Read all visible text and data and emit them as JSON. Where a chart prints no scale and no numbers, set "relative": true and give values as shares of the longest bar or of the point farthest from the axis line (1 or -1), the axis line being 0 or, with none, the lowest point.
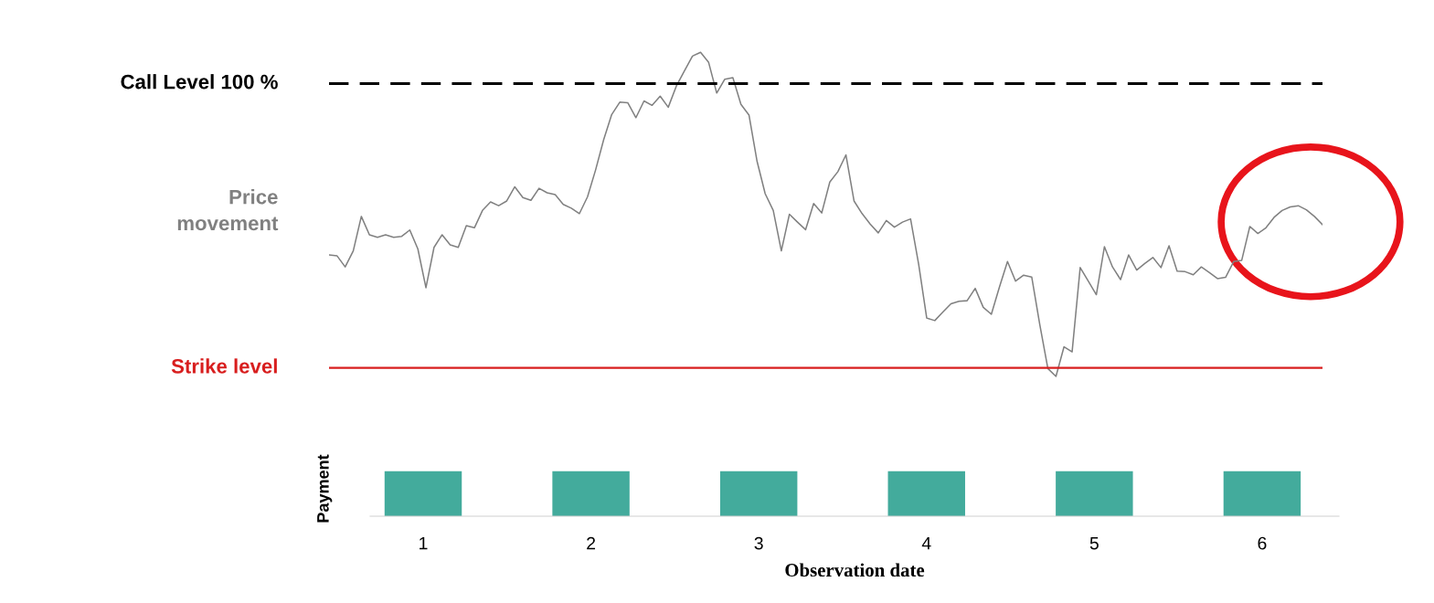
{
  "chart_data": [
    {
      "type": "line",
      "relative": true,
      "grid": false,
      "legend": false,
      "categories": [
        null,
        null,
        null,
        null,
        null,
        null,
        null,
        null,
        null,
        null,
        null,
        null,
        null,
        null,
        null,
        null,
        null,
        null,
        null,
        null,
        null,
        null,
        null,
        null,
        null,
        null,
        null,
        null,
        null,
        null,
        null,
        null,
        null,
        null,
        null,
        null,
        null,
        null,
        null,
        null,
        null,
        null,
        null,
        null,
        null,
        null,
        null,
        null,
        null,
        null,
        null,
        null,
        null,
        null,
        null,
        null,
        null,
        null,
        null,
        null,
        null,
        null,
        null,
        null,
        null,
        null,
        null,
        null,
        null,
        null,
        null,
        null,
        null,
        null,
        null,
        null,
        null,
        null,
        null,
        null,
        null,
        null,
        null,
        null,
        null,
        null,
        null,
        null,
        null,
        null,
        null,
        null,
        null,
        null,
        null,
        null,
        null,
        null,
        null,
        null,
        null,
        null,
        null,
        null,
        null,
        null,
        null,
        null,
        null,
        null,
        null,
        null,
        null,
        null,
        null,
        null,
        null,
        null,
        null,
        null,
        null,
        null,
        null,
        null
      ],
      "series": [
        {
          "name": "Price movement",
          "color": "#808080",
          "values": [
            0.358,
            0.355,
            0.32,
            0.371,
            0.48,
            0.422,
            0.414,
            0.422,
            0.414,
            0.417,
            0.437,
            0.377,
            0.254,
            0.382,
            0.422,
            0.39,
            0.382,
            0.451,
            0.444,
            0.499,
            0.526,
            0.514,
            0.529,
            0.574,
            0.54,
            0.531,
            0.569,
            0.555,
            0.549,
            0.518,
            0.506,
            0.489,
            0.542,
            0.627,
            0.723,
            0.803,
            0.842,
            0.84,
            0.793,
            0.846,
            0.832,
            0.861,
            0.826,
            0.893,
            0.941,
            0.988,
            1.0,
            0.968,
            0.871,
            0.915,
            0.92,
            0.835,
            0.801,
            0.654,
            0.552,
            0.499,
            0.371,
            0.487,
            0.462,
            0.438,
            0.521,
            0.491,
            0.589,
            0.622,
            0.675,
            0.529,
            0.489,
            0.456,
            0.428,
            0.467,
            0.446,
            0.462,
            0.472,
            0.329,
            0.158,
            0.15,
            0.177,
            0.203,
            0.211,
            0.213,
            0.252,
            0.192,
            0.17,
            0.256,
            0.337,
            0.275,
            0.294,
            0.288,
            0.137,
            -0.002,
            -0.027,
            0.067,
            0.051,
            0.318,
            0.275,
            0.232,
            0.384,
            0.32,
            0.28,
            0.358,
            0.31,
            0.331,
            0.35,
            0.318,
            0.387,
            0.307,
            0.305,
            0.295,
            0.32,
            0.302,
            0.283,
            0.287,
            0.337,
            0.341,
            0.448,
            0.426,
            0.444,
            0.477,
            0.499,
            0.51,
            0.514,
            0.501,
            0.48,
            0.454
          ]
        }
      ],
      "ref_lines": [
        {
          "axis": "y",
          "value": 0.901,
          "label": "Call Level 100 %",
          "color": "#000000",
          "line_style": "dashed"
        },
        {
          "axis": "y",
          "value": 0,
          "label": "Strike level",
          "color": "#d81e1e",
          "line_style": "solid"
        }
      ]
    },
    {
      "type": "bar",
      "relative": true,
      "categories": [
        "1",
        "2",
        "3",
        "4",
        "5",
        "6"
      ],
      "values": [
        1,
        1,
        1,
        1,
        1,
        1
      ],
      "color": "#43ab9c",
      "ylabel": "Payment",
      "xlabel": "Observation date",
      "grid": false,
      "legend": false
    }
  ]
}
